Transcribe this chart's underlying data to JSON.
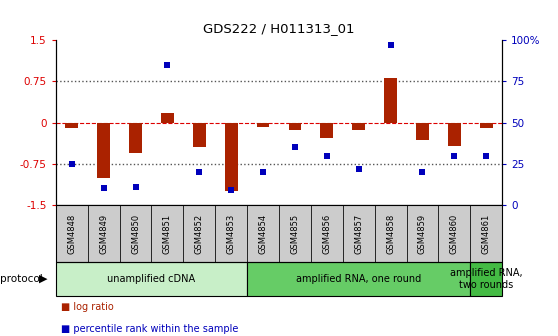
{
  "title": "GDS222 / H011313_01",
  "samples": [
    "GSM4848",
    "GSM4849",
    "GSM4850",
    "GSM4851",
    "GSM4852",
    "GSM4853",
    "GSM4854",
    "GSM4855",
    "GSM4856",
    "GSM4857",
    "GSM4858",
    "GSM4859",
    "GSM4860",
    "GSM4861"
  ],
  "log_ratio": [
    -0.1,
    -1.0,
    -0.55,
    0.18,
    -0.45,
    -1.25,
    -0.08,
    -0.13,
    -0.28,
    -0.13,
    0.82,
    -0.32,
    -0.42,
    -0.1
  ],
  "percentile": [
    25,
    10,
    11,
    85,
    20,
    9,
    20,
    35,
    30,
    22,
    97,
    20,
    30,
    30
  ],
  "protocol_groups": [
    {
      "label": "unamplified cDNA",
      "start": 0,
      "end": 5,
      "color": "#c8efc8"
    },
    {
      "label": "amplified RNA, one round",
      "start": 6,
      "end": 12,
      "color": "#66cc66"
    },
    {
      "label": "amplified RNA,\ntwo rounds",
      "start": 13,
      "end": 13,
      "color": "#44bb44"
    }
  ],
  "ylim_left": [
    -1.5,
    1.5
  ],
  "ylim_right": [
    0,
    100
  ],
  "yticks_left": [
    -1.5,
    -0.75,
    0,
    0.75,
    1.5
  ],
  "ytick_labels_left": [
    "-1.5",
    "-0.75",
    "0",
    "0.75",
    "1.5"
  ],
  "yticks_right": [
    0,
    25,
    50,
    75,
    100
  ],
  "ytick_labels_right": [
    "0",
    "25",
    "50",
    "75",
    "100%"
  ],
  "bar_color": "#aa2200",
  "dot_color": "#0000bb",
  "hline_color": "#dd0000",
  "dotline_color": "#555555",
  "background_color": "#ffffff",
  "protocol_label": "protocol",
  "legend_log": "log ratio",
  "legend_pct": "percentile rank within the sample",
  "tick_bg_color": "#cccccc",
  "bar_width": 0.4
}
